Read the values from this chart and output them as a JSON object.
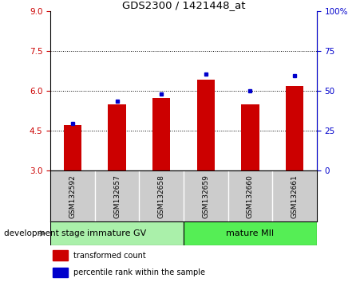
{
  "title": "GDS2300 / 1421448_at",
  "samples": [
    "GSM132592",
    "GSM132657",
    "GSM132658",
    "GSM132659",
    "GSM132660",
    "GSM132661"
  ],
  "red_values": [
    4.72,
    5.5,
    5.72,
    6.42,
    5.5,
    6.18
  ],
  "blue_values": [
    4.78,
    5.62,
    5.87,
    6.63,
    6.0,
    6.58
  ],
  "ymin": 3.0,
  "ymax": 9.0,
  "yticks_left": [
    3.0,
    4.5,
    6.0,
    7.5,
    9.0
  ],
  "yticks_right_pct": [
    0,
    25,
    50,
    75,
    100
  ],
  "grid_lines": [
    4.5,
    6.0,
    7.5
  ],
  "groups": [
    {
      "label": "immature GV",
      "color": "#aaf0aa",
      "n": 3
    },
    {
      "label": "mature MII",
      "color": "#55ee55",
      "n": 3
    }
  ],
  "bar_color": "#cc0000",
  "blue_color": "#0000cc",
  "bar_width": 0.4,
  "left_tick_color": "#cc0000",
  "right_tick_color": "#0000cc",
  "label_bg_color": "#cccccc",
  "plot_bg": "#ffffff",
  "legend_red_label": "transformed count",
  "legend_blue_label": "percentile rank within the sample",
  "dev_stage_label": "development stage"
}
